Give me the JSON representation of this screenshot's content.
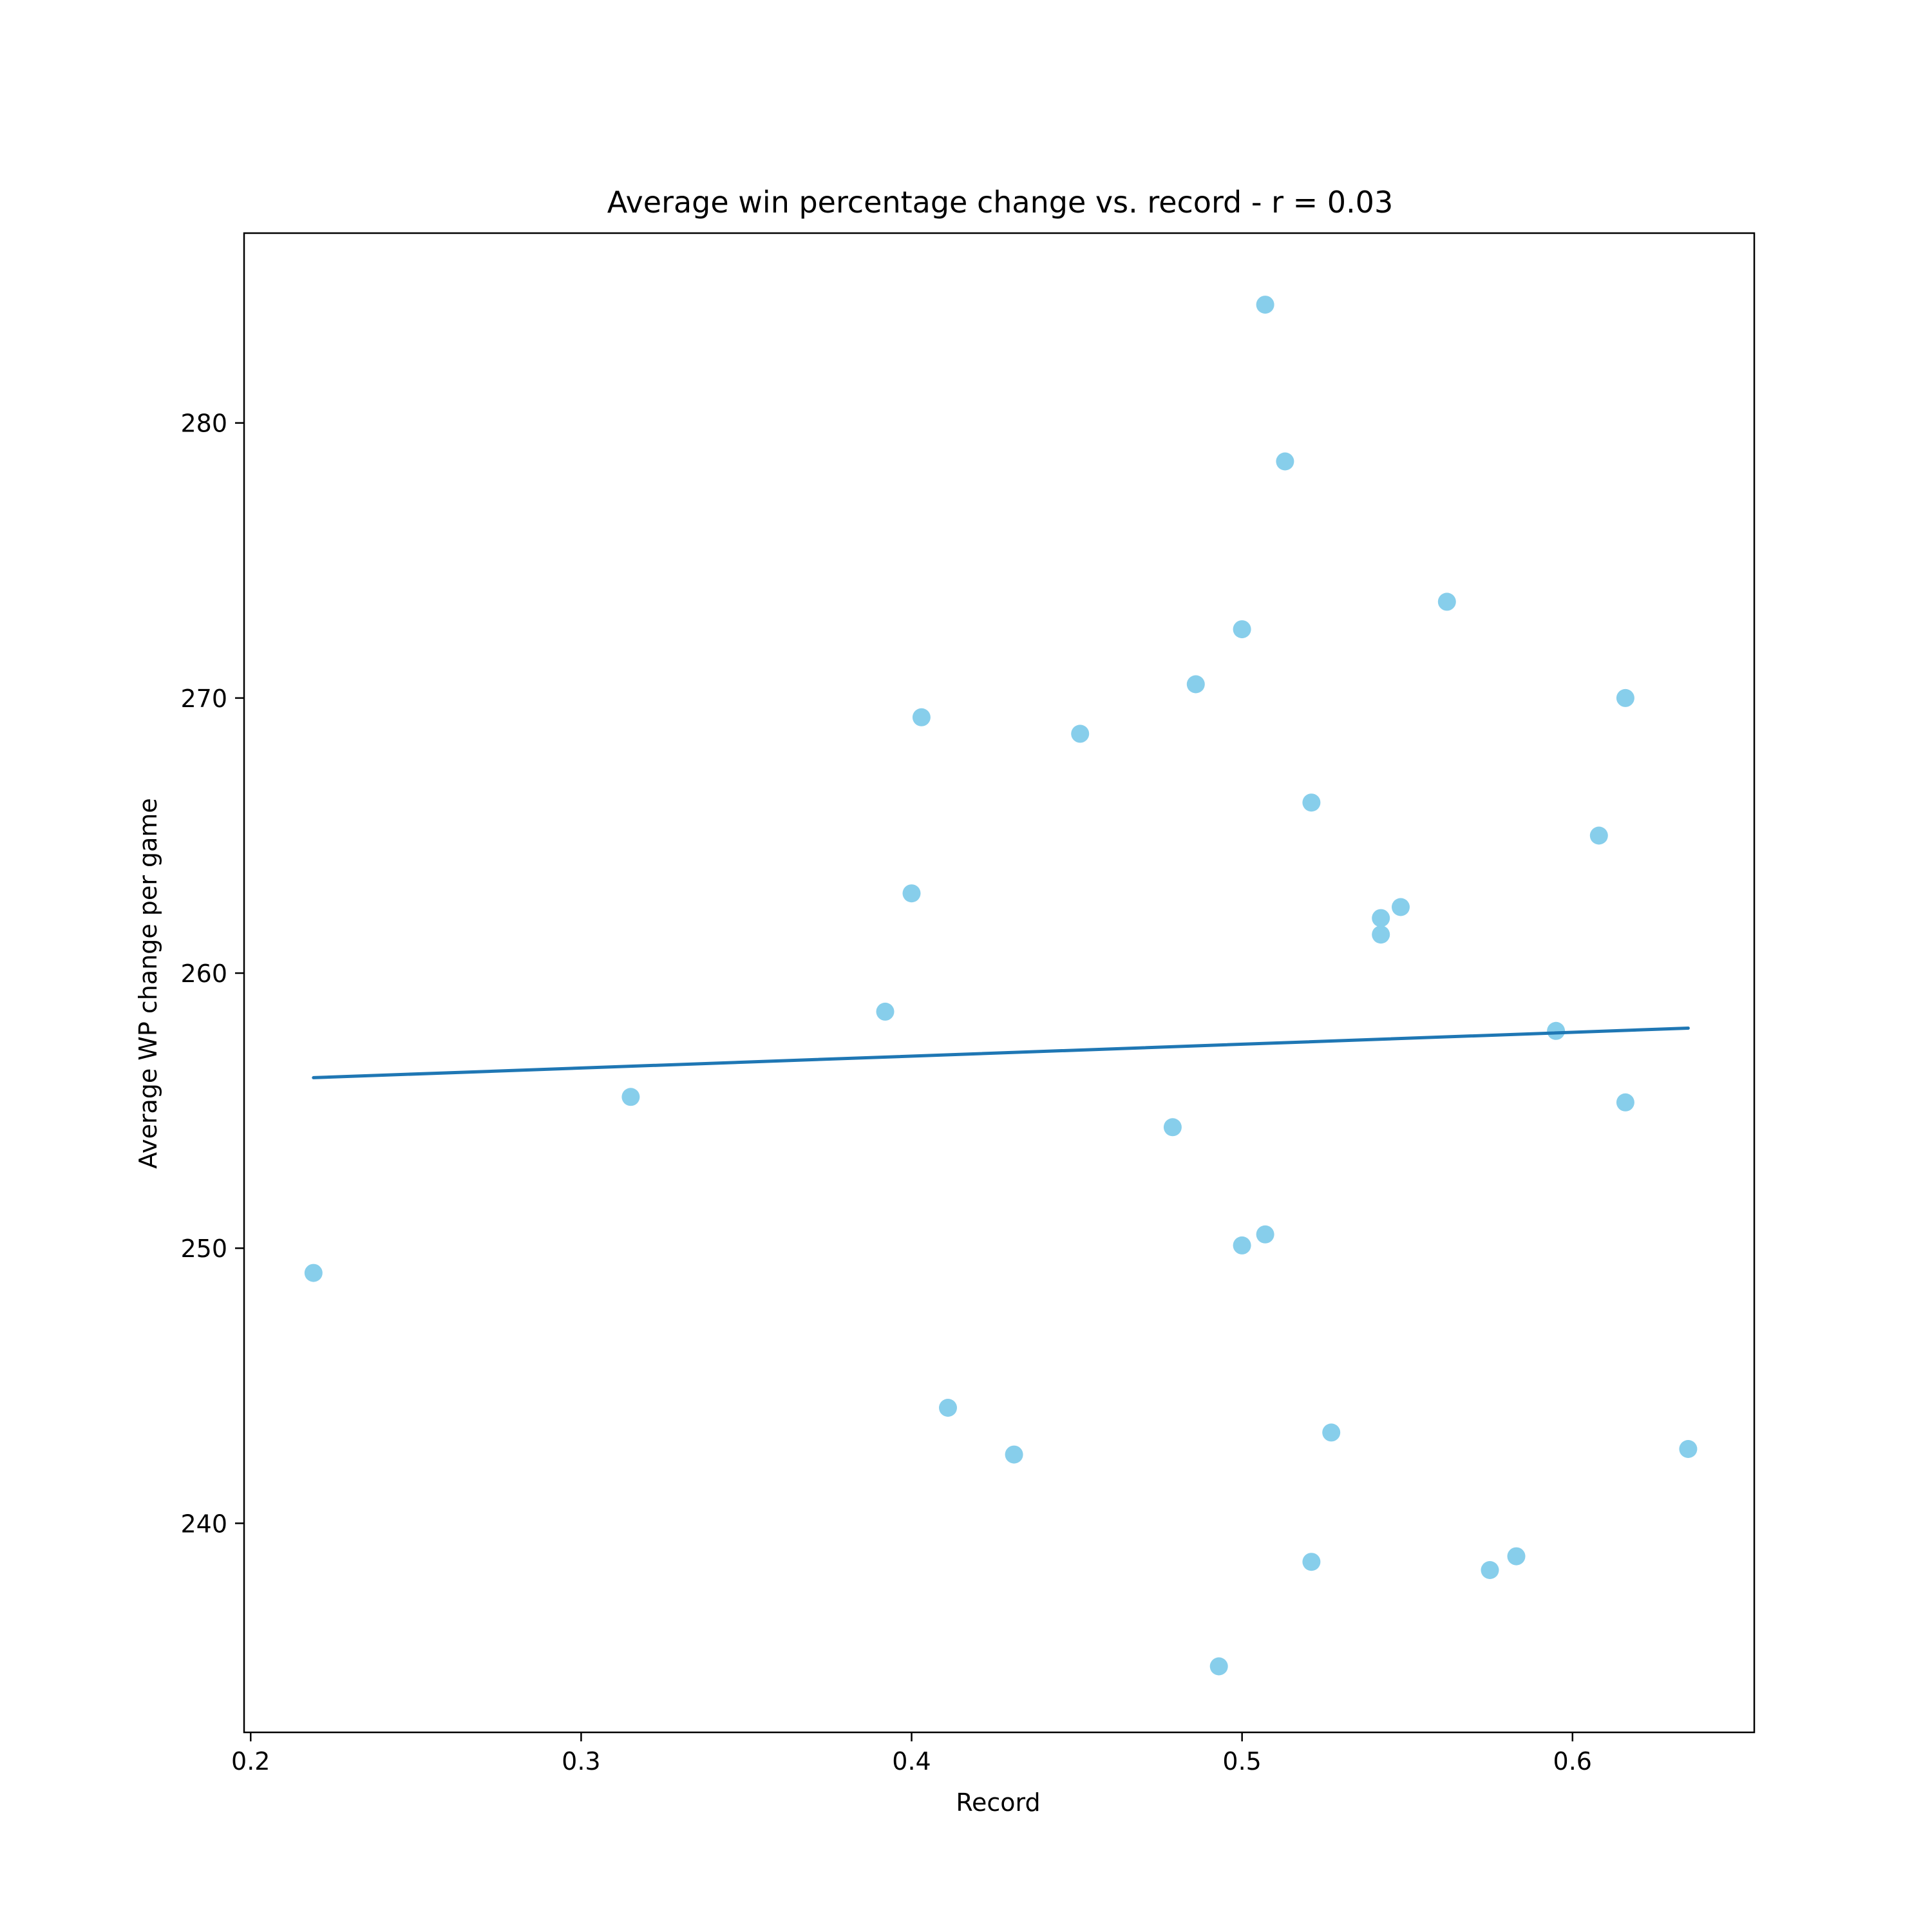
{
  "chart_data": {
    "type": "scatter",
    "title": "Average win percentage change vs. record - r = 0.03",
    "xlabel": "Record",
    "ylabel": "Average WP change per game",
    "xlim": [
      0.198,
      0.655
    ],
    "ylim": [
      232.4,
      286.9
    ],
    "x_ticks": [
      0.2,
      0.3,
      0.4,
      0.5,
      0.6
    ],
    "x_tick_labels": [
      "0.2",
      "0.3",
      "0.4",
      "0.5",
      "0.6"
    ],
    "y_ticks": [
      240,
      250,
      260,
      270,
      280
    ],
    "y_tick_labels": [
      "240",
      "250",
      "260",
      "270",
      "280"
    ],
    "grid": false,
    "colors": {
      "points": "#87ceeb",
      "fit_line": "#1f77b4",
      "axes": "#000000"
    },
    "points": [
      {
        "x": 0.219,
        "y": 249.1
      },
      {
        "x": 0.315,
        "y": 255.5
      },
      {
        "x": 0.392,
        "y": 258.6
      },
      {
        "x": 0.4,
        "y": 262.9
      },
      {
        "x": 0.403,
        "y": 269.3
      },
      {
        "x": 0.411,
        "y": 244.2
      },
      {
        "x": 0.431,
        "y": 242.5
      },
      {
        "x": 0.451,
        "y": 268.7
      },
      {
        "x": 0.479,
        "y": 254.4
      },
      {
        "x": 0.486,
        "y": 270.5
      },
      {
        "x": 0.493,
        "y": 234.8
      },
      {
        "x": 0.5,
        "y": 272.5
      },
      {
        "x": 0.5,
        "y": 250.1
      },
      {
        "x": 0.507,
        "y": 284.3
      },
      {
        "x": 0.507,
        "y": 250.5
      },
      {
        "x": 0.513,
        "y": 278.6
      },
      {
        "x": 0.521,
        "y": 266.2
      },
      {
        "x": 0.521,
        "y": 238.6
      },
      {
        "x": 0.527,
        "y": 243.3
      },
      {
        "x": 0.542,
        "y": 262.0
      },
      {
        "x": 0.542,
        "y": 261.4
      },
      {
        "x": 0.548,
        "y": 262.4
      },
      {
        "x": 0.562,
        "y": 273.5
      },
      {
        "x": 0.575,
        "y": 238.3
      },
      {
        "x": 0.583,
        "y": 238.8
      },
      {
        "x": 0.595,
        "y": 257.9
      },
      {
        "x": 0.608,
        "y": 265.0
      },
      {
        "x": 0.616,
        "y": 270.0
      },
      {
        "x": 0.616,
        "y": 255.3
      },
      {
        "x": 0.635,
        "y": 242.7
      }
    ],
    "fit_line": {
      "x": [
        0.219,
        0.635
      ],
      "y": [
        256.2,
        258.0
      ]
    }
  }
}
